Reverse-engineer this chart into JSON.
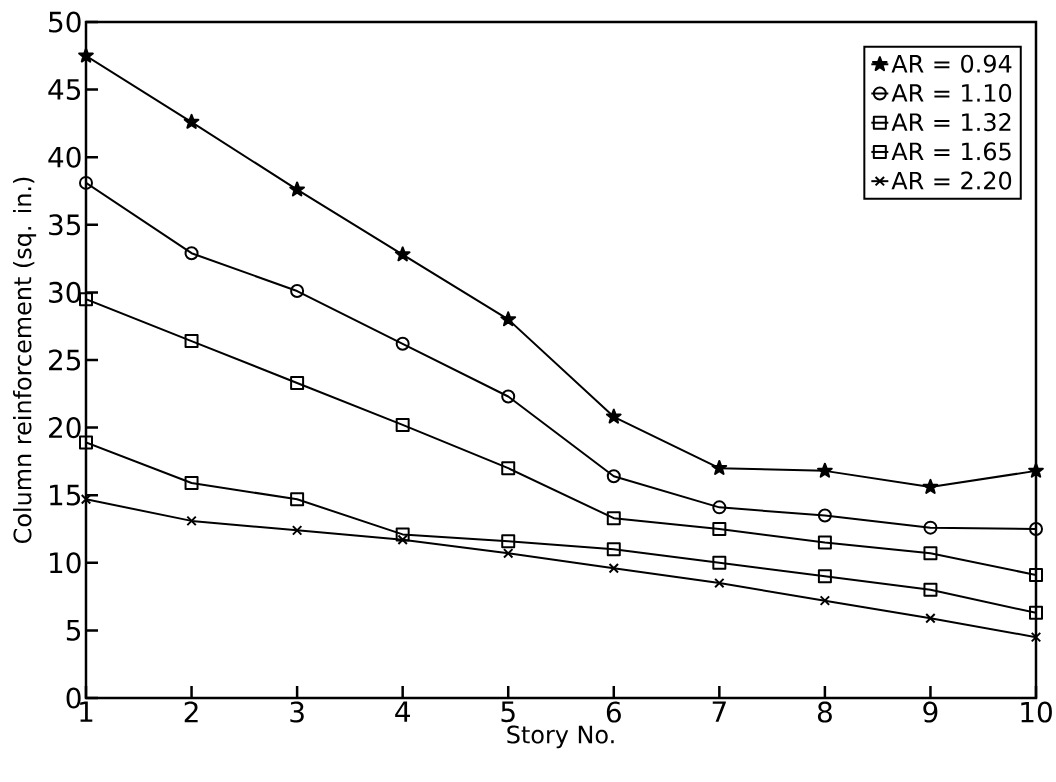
{
  "chart_data": {
    "type": "line",
    "xlabel": "Story No.",
    "ylabel": "Column reinforcement  (sq. in.)",
    "x": [
      1,
      2,
      3,
      4,
      5,
      6,
      7,
      8,
      9,
      10
    ],
    "xlim": [
      1,
      10
    ],
    "xticks": [
      1,
      2,
      3,
      4,
      5,
      6,
      7,
      8,
      9,
      10
    ],
    "ylim": [
      0,
      50
    ],
    "yticks": [
      0,
      5,
      10,
      15,
      20,
      25,
      30,
      35,
      40,
      45,
      50
    ],
    "grid": false,
    "legend": "top right",
    "line_style": "solid",
    "series": [
      {
        "name": "AR = 0.94",
        "color": "#000000",
        "marker": "star",
        "values": [
          47.5,
          42.6,
          37.6,
          32.8,
          28.0,
          20.8,
          17.0,
          16.8,
          15.6,
          16.8
        ]
      },
      {
        "name": "AR = 1.10",
        "color": "#000000",
        "marker": "circle",
        "values": [
          38.1,
          32.9,
          30.1,
          26.2,
          22.3,
          16.4,
          14.1,
          13.5,
          12.6,
          12.5
        ]
      },
      {
        "name": "AR = 1.32",
        "color": "#000000",
        "marker": "square",
        "values": [
          29.5,
          26.4,
          23.3,
          20.2,
          17.0,
          13.3,
          12.5,
          11.5,
          10.7,
          9.1
        ]
      },
      {
        "name": "AR = 1.65",
        "color": "#000000",
        "marker": "square",
        "values": [
          18.9,
          15.9,
          14.7,
          12.1,
          11.6,
          11.0,
          10.0,
          9.0,
          8.0,
          6.3
        ]
      },
      {
        "name": "AR = 2.20",
        "color": "#000000",
        "marker": "cross",
        "values": [
          14.7,
          13.1,
          12.4,
          11.7,
          10.7,
          9.6,
          8.5,
          7.2,
          5.9,
          4.5
        ]
      }
    ]
  }
}
